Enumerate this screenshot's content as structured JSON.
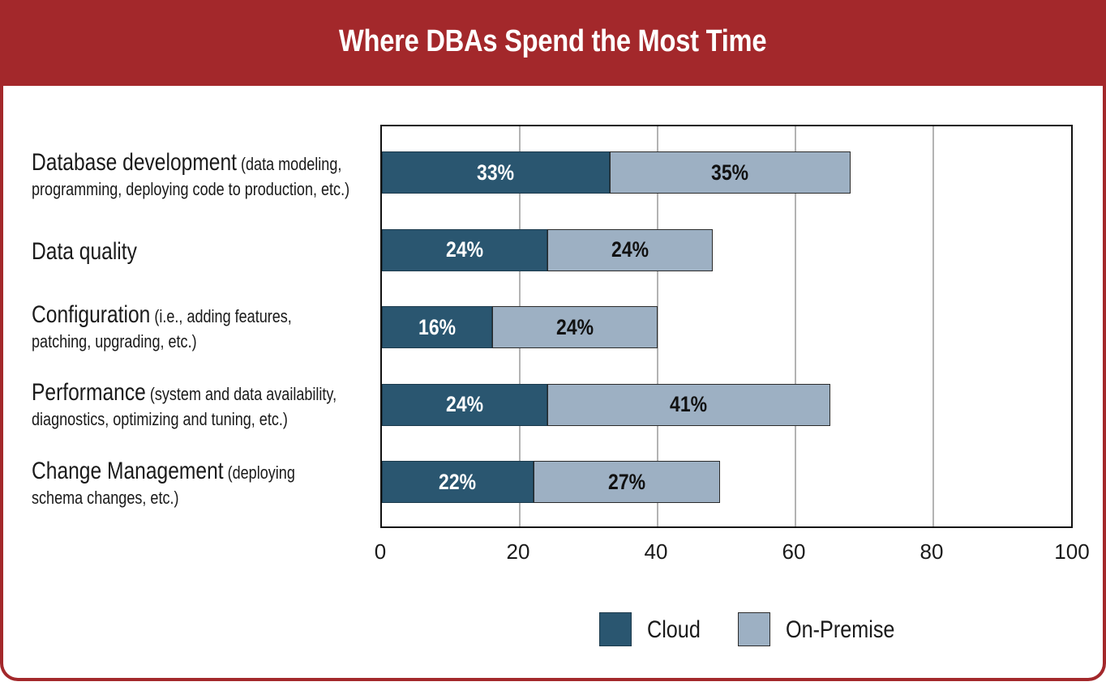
{
  "chart_data": {
    "type": "bar",
    "orientation": "horizontal",
    "stacked": true,
    "title": "Where DBAs Spend the Most Time",
    "categories": [
      {
        "label": "Database development",
        "note": " (data modeling,",
        "line2": "programming, deploying code to production, etc.)"
      },
      {
        "label": "Data quality",
        "note": "",
        "line2": ""
      },
      {
        "label": "Configuration",
        "note": " (i.e., adding features,",
        "line2": "patching, upgrading, etc.)"
      },
      {
        "label": "Performance",
        "note": " (system and data availability,",
        "line2": "diagnostics, optimizing and tuning, etc.)"
      },
      {
        "label": "Change Management",
        "note": " (deploying",
        "line2": "schema changes, etc.)"
      }
    ],
    "series": [
      {
        "name": "Cloud",
        "values": [
          33,
          24,
          16,
          24,
          22
        ],
        "labels": [
          "33%",
          "24%",
          "16%",
          "24%",
          "22%"
        ],
        "color": "#2a5670"
      },
      {
        "name": "On-Premise",
        "values": [
          35,
          24,
          24,
          41,
          27
        ],
        "labels": [
          "35%",
          "24%",
          "24%",
          "41%",
          "27%"
        ],
        "color": "#9db0c3"
      }
    ],
    "xlim": [
      0,
      100
    ],
    "xticks": [
      "0",
      "20",
      "40",
      "60",
      "80",
      "100"
    ],
    "grid": true,
    "legend": "bottom-right"
  }
}
